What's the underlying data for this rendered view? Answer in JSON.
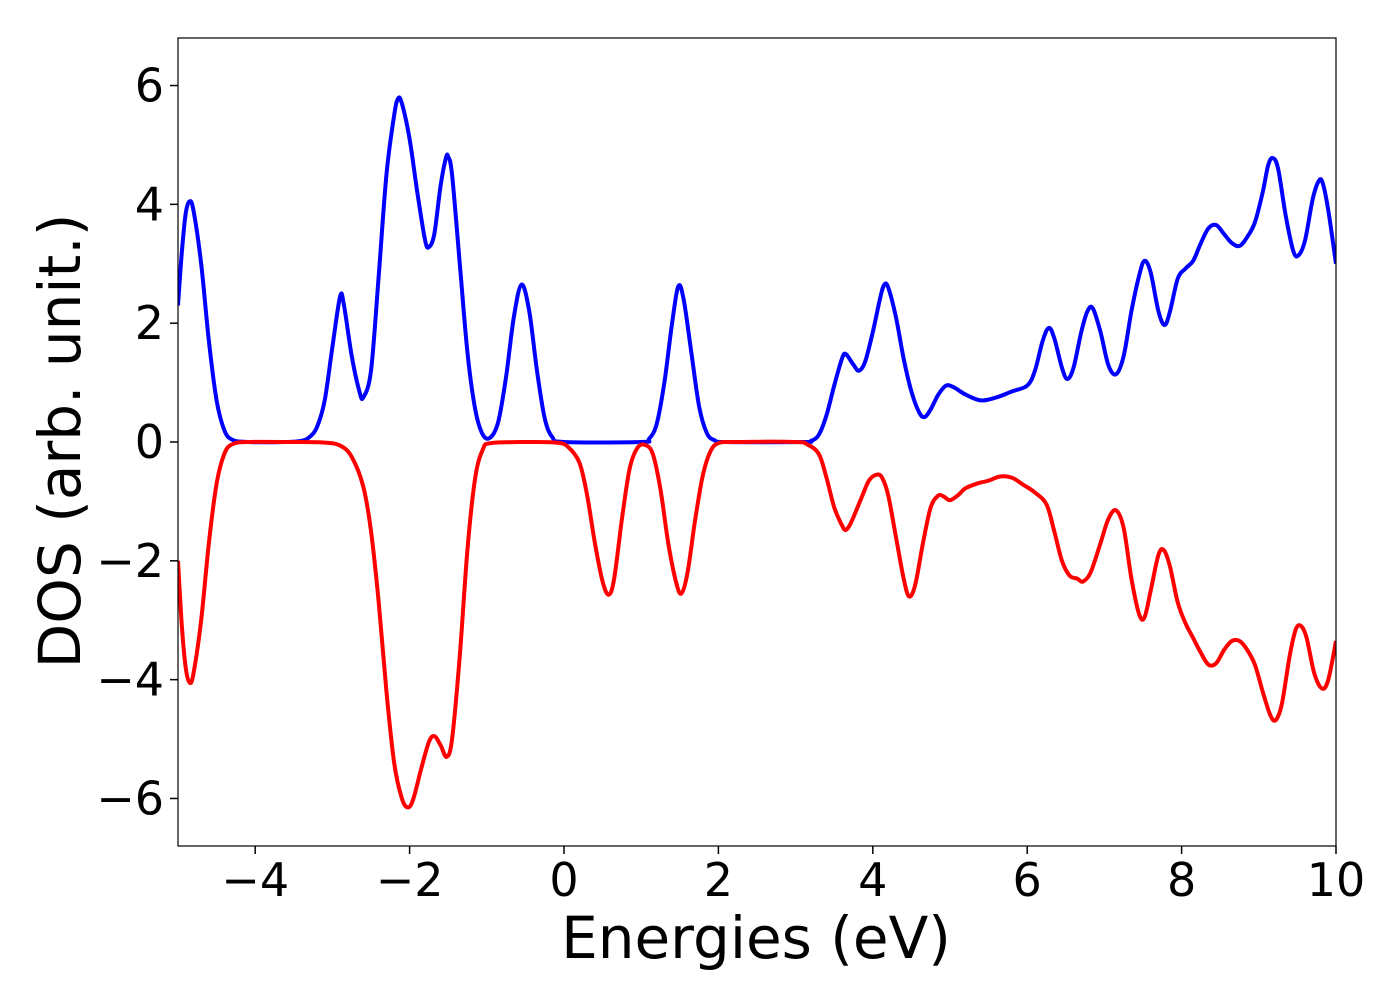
{
  "chart_data": {
    "type": "line",
    "title": "",
    "xlabel": "Energies (eV)",
    "ylabel": "DOS (arb. unit.)",
    "xlim": [
      -5,
      10
    ],
    "ylim": [
      -6.8,
      6.8
    ],
    "xticks": [
      -4,
      -2,
      0,
      2,
      4,
      6,
      8,
      10
    ],
    "xtick_labels": [
      "−4",
      "−2",
      "0",
      "2",
      "4",
      "6",
      "8",
      "10"
    ],
    "yticks": [
      -6,
      -4,
      -2,
      0,
      2,
      4,
      6
    ],
    "ytick_labels": [
      "−6",
      "−4",
      "−2",
      "0",
      "2",
      "4",
      "6"
    ],
    "grid": false,
    "legend": "none",
    "series": [
      {
        "color": "#0000ff",
        "points": [
          [
            -5.0,
            2.3
          ],
          [
            -4.95,
            3.2
          ],
          [
            -4.9,
            3.85
          ],
          [
            -4.85,
            4.05
          ],
          [
            -4.8,
            3.9
          ],
          [
            -4.7,
            3.0
          ],
          [
            -4.6,
            1.7
          ],
          [
            -4.5,
            0.7
          ],
          [
            -4.4,
            0.2
          ],
          [
            -4.3,
            0.04
          ],
          [
            -4.1,
            0.0
          ],
          [
            -3.6,
            0.0
          ],
          [
            -3.4,
            0.02
          ],
          [
            -3.3,
            0.08
          ],
          [
            -3.2,
            0.25
          ],
          [
            -3.1,
            0.7
          ],
          [
            -3.0,
            1.6
          ],
          [
            -2.9,
            2.45
          ],
          [
            -2.85,
            2.3
          ],
          [
            -2.75,
            1.45
          ],
          [
            -2.65,
            0.85
          ],
          [
            -2.6,
            0.75
          ],
          [
            -2.5,
            1.2
          ],
          [
            -2.4,
            2.8
          ],
          [
            -2.3,
            4.5
          ],
          [
            -2.2,
            5.5
          ],
          [
            -2.15,
            5.78
          ],
          [
            -2.1,
            5.7
          ],
          [
            -2.0,
            5.1
          ],
          [
            -1.9,
            4.2
          ],
          [
            -1.8,
            3.4
          ],
          [
            -1.75,
            3.28
          ],
          [
            -1.68,
            3.5
          ],
          [
            -1.6,
            4.3
          ],
          [
            -1.53,
            4.78
          ],
          [
            -1.5,
            4.8
          ],
          [
            -1.45,
            4.5
          ],
          [
            -1.35,
            3.0
          ],
          [
            -1.25,
            1.5
          ],
          [
            -1.15,
            0.55
          ],
          [
            -1.05,
            0.12
          ],
          [
            -0.95,
            0.08
          ],
          [
            -0.85,
            0.35
          ],
          [
            -0.75,
            1.1
          ],
          [
            -0.65,
            2.1
          ],
          [
            -0.55,
            2.65
          ],
          [
            -0.45,
            2.2
          ],
          [
            -0.35,
            1.2
          ],
          [
            -0.25,
            0.4
          ],
          [
            -0.15,
            0.08
          ],
          [
            0.0,
            0.0
          ],
          [
            1.0,
            0.0
          ],
          [
            1.1,
            0.05
          ],
          [
            1.2,
            0.3
          ],
          [
            1.3,
            1.0
          ],
          [
            1.4,
            2.0
          ],
          [
            1.48,
            2.62
          ],
          [
            1.55,
            2.4
          ],
          [
            1.65,
            1.5
          ],
          [
            1.75,
            0.6
          ],
          [
            1.85,
            0.15
          ],
          [
            1.95,
            0.03
          ],
          [
            2.1,
            0.0
          ],
          [
            3.1,
            0.0
          ],
          [
            3.2,
            0.02
          ],
          [
            3.3,
            0.12
          ],
          [
            3.4,
            0.45
          ],
          [
            3.5,
            0.95
          ],
          [
            3.6,
            1.4
          ],
          [
            3.65,
            1.48
          ],
          [
            3.75,
            1.3
          ],
          [
            3.82,
            1.2
          ],
          [
            3.9,
            1.35
          ],
          [
            4.0,
            1.85
          ],
          [
            4.1,
            2.45
          ],
          [
            4.15,
            2.65
          ],
          [
            4.2,
            2.6
          ],
          [
            4.3,
            2.1
          ],
          [
            4.4,
            1.4
          ],
          [
            4.5,
            0.85
          ],
          [
            4.6,
            0.5
          ],
          [
            4.67,
            0.42
          ],
          [
            4.75,
            0.55
          ],
          [
            4.85,
            0.8
          ],
          [
            4.95,
            0.95
          ],
          [
            5.05,
            0.92
          ],
          [
            5.2,
            0.8
          ],
          [
            5.4,
            0.7
          ],
          [
            5.6,
            0.75
          ],
          [
            5.8,
            0.85
          ],
          [
            6.0,
            0.95
          ],
          [
            6.1,
            1.2
          ],
          [
            6.2,
            1.7
          ],
          [
            6.28,
            1.92
          ],
          [
            6.35,
            1.75
          ],
          [
            6.45,
            1.25
          ],
          [
            6.52,
            1.06
          ],
          [
            6.6,
            1.25
          ],
          [
            6.7,
            1.85
          ],
          [
            6.78,
            2.2
          ],
          [
            6.85,
            2.25
          ],
          [
            6.95,
            1.85
          ],
          [
            7.05,
            1.3
          ],
          [
            7.15,
            1.14
          ],
          [
            7.25,
            1.45
          ],
          [
            7.35,
            2.2
          ],
          [
            7.45,
            2.8
          ],
          [
            7.52,
            3.05
          ],
          [
            7.6,
            2.85
          ],
          [
            7.7,
            2.2
          ],
          [
            7.78,
            1.97
          ],
          [
            7.85,
            2.2
          ],
          [
            7.95,
            2.75
          ],
          [
            8.05,
            2.92
          ],
          [
            8.15,
            3.05
          ],
          [
            8.25,
            3.35
          ],
          [
            8.35,
            3.6
          ],
          [
            8.45,
            3.65
          ],
          [
            8.55,
            3.5
          ],
          [
            8.65,
            3.35
          ],
          [
            8.75,
            3.3
          ],
          [
            8.85,
            3.45
          ],
          [
            8.95,
            3.7
          ],
          [
            9.05,
            4.2
          ],
          [
            9.12,
            4.65
          ],
          [
            9.18,
            4.78
          ],
          [
            9.25,
            4.6
          ],
          [
            9.35,
            3.8
          ],
          [
            9.45,
            3.2
          ],
          [
            9.52,
            3.15
          ],
          [
            9.6,
            3.4
          ],
          [
            9.7,
            4.1
          ],
          [
            9.78,
            4.4
          ],
          [
            9.83,
            4.35
          ],
          [
            9.9,
            3.9
          ],
          [
            10.0,
            3.0
          ]
        ]
      },
      {
        "color": "#ff0000",
        "points": [
          [
            -5.0,
            -2.0
          ],
          [
            -4.95,
            -3.1
          ],
          [
            -4.9,
            -3.8
          ],
          [
            -4.85,
            -4.05
          ],
          [
            -4.8,
            -3.9
          ],
          [
            -4.7,
            -3.0
          ],
          [
            -4.6,
            -1.7
          ],
          [
            -4.5,
            -0.7
          ],
          [
            -4.4,
            -0.2
          ],
          [
            -4.3,
            -0.04
          ],
          [
            -4.1,
            0.0
          ],
          [
            -3.5,
            0.0
          ],
          [
            -3.1,
            -0.01
          ],
          [
            -2.9,
            -0.06
          ],
          [
            -2.75,
            -0.25
          ],
          [
            -2.6,
            -0.75
          ],
          [
            -2.5,
            -1.5
          ],
          [
            -2.4,
            -2.7
          ],
          [
            -2.3,
            -4.2
          ],
          [
            -2.2,
            -5.4
          ],
          [
            -2.1,
            -6.0
          ],
          [
            -2.02,
            -6.15
          ],
          [
            -1.95,
            -6.0
          ],
          [
            -1.85,
            -5.5
          ],
          [
            -1.75,
            -5.05
          ],
          [
            -1.68,
            -4.95
          ],
          [
            -1.6,
            -5.1
          ],
          [
            -1.52,
            -5.3
          ],
          [
            -1.45,
            -5.0
          ],
          [
            -1.35,
            -3.6
          ],
          [
            -1.25,
            -1.8
          ],
          [
            -1.15,
            -0.6
          ],
          [
            -1.05,
            -0.12
          ],
          [
            -0.95,
            -0.02
          ],
          [
            -0.5,
            0.0
          ],
          [
            -0.1,
            -0.01
          ],
          [
            0.05,
            -0.08
          ],
          [
            0.2,
            -0.35
          ],
          [
            0.3,
            -0.9
          ],
          [
            0.4,
            -1.7
          ],
          [
            0.5,
            -2.35
          ],
          [
            0.58,
            -2.57
          ],
          [
            0.65,
            -2.3
          ],
          [
            0.75,
            -1.3
          ],
          [
            0.85,
            -0.45
          ],
          [
            0.95,
            -0.1
          ],
          [
            1.05,
            -0.05
          ],
          [
            1.15,
            -0.2
          ],
          [
            1.25,
            -0.8
          ],
          [
            1.35,
            -1.7
          ],
          [
            1.45,
            -2.35
          ],
          [
            1.52,
            -2.55
          ],
          [
            1.6,
            -2.2
          ],
          [
            1.7,
            -1.3
          ],
          [
            1.8,
            -0.55
          ],
          [
            1.9,
            -0.15
          ],
          [
            2.0,
            -0.02
          ],
          [
            2.2,
            0.0
          ],
          [
            3.0,
            0.0
          ],
          [
            3.15,
            -0.04
          ],
          [
            3.3,
            -0.2
          ],
          [
            3.4,
            -0.6
          ],
          [
            3.5,
            -1.1
          ],
          [
            3.6,
            -1.4
          ],
          [
            3.65,
            -1.48
          ],
          [
            3.72,
            -1.35
          ],
          [
            3.85,
            -0.95
          ],
          [
            3.95,
            -0.65
          ],
          [
            4.05,
            -0.55
          ],
          [
            4.12,
            -0.6
          ],
          [
            4.2,
            -0.9
          ],
          [
            4.3,
            -1.6
          ],
          [
            4.4,
            -2.3
          ],
          [
            4.47,
            -2.6
          ],
          [
            4.55,
            -2.4
          ],
          [
            4.65,
            -1.7
          ],
          [
            4.75,
            -1.1
          ],
          [
            4.85,
            -0.9
          ],
          [
            4.92,
            -0.92
          ],
          [
            5.0,
            -0.98
          ],
          [
            5.1,
            -0.9
          ],
          [
            5.2,
            -0.78
          ],
          [
            5.35,
            -0.7
          ],
          [
            5.5,
            -0.65
          ],
          [
            5.65,
            -0.58
          ],
          [
            5.8,
            -0.6
          ],
          [
            5.95,
            -0.72
          ],
          [
            6.1,
            -0.85
          ],
          [
            6.25,
            -1.05
          ],
          [
            6.35,
            -1.5
          ],
          [
            6.45,
            -2.0
          ],
          [
            6.55,
            -2.25
          ],
          [
            6.65,
            -2.3
          ],
          [
            6.72,
            -2.35
          ],
          [
            6.82,
            -2.2
          ],
          [
            6.95,
            -1.7
          ],
          [
            7.05,
            -1.3
          ],
          [
            7.15,
            -1.15
          ],
          [
            7.25,
            -1.45
          ],
          [
            7.35,
            -2.3
          ],
          [
            7.45,
            -2.9
          ],
          [
            7.52,
            -2.95
          ],
          [
            7.6,
            -2.5
          ],
          [
            7.7,
            -1.9
          ],
          [
            7.77,
            -1.82
          ],
          [
            7.85,
            -2.1
          ],
          [
            7.95,
            -2.7
          ],
          [
            8.05,
            -3.05
          ],
          [
            8.15,
            -3.3
          ],
          [
            8.25,
            -3.55
          ],
          [
            8.35,
            -3.75
          ],
          [
            8.45,
            -3.72
          ],
          [
            8.55,
            -3.5
          ],
          [
            8.65,
            -3.35
          ],
          [
            8.75,
            -3.35
          ],
          [
            8.85,
            -3.5
          ],
          [
            8.95,
            -3.75
          ],
          [
            9.05,
            -4.2
          ],
          [
            9.15,
            -4.6
          ],
          [
            9.22,
            -4.68
          ],
          [
            9.3,
            -4.4
          ],
          [
            9.4,
            -3.6
          ],
          [
            9.48,
            -3.15
          ],
          [
            9.55,
            -3.1
          ],
          [
            9.62,
            -3.3
          ],
          [
            9.72,
            -3.9
          ],
          [
            9.82,
            -4.15
          ],
          [
            9.9,
            -4.0
          ],
          [
            10.0,
            -3.35
          ]
        ]
      }
    ]
  }
}
